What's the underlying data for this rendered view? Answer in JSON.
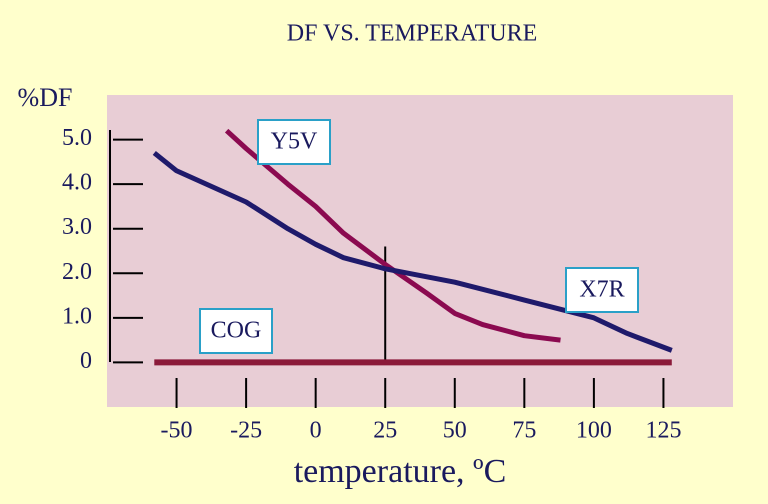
{
  "chart_data": {
    "type": "line",
    "title": "DF VS. TEMPERATURE",
    "y_label": "%DF",
    "x_label": "temperature, ºC",
    "xlim": [
      -75,
      150
    ],
    "xticks": [
      -50,
      -25,
      0,
      25,
      50,
      75,
      100,
      125
    ],
    "ylim": [
      -1,
      6
    ],
    "yticks": [
      0,
      {
        "value": 1,
        "label": "1.0"
      },
      {
        "value": 2,
        "label": "2.0"
      },
      {
        "value": 3,
        "label": "3.0"
      },
      {
        "value": 4,
        "label": "4.0"
      },
      {
        "value": 5,
        "label": "5.0"
      }
    ],
    "series": [
      {
        "name": "Y5V",
        "color": "#8b0a50",
        "x": [
          -32,
          -25,
          -10,
          0,
          10,
          25,
          40,
          50,
          60,
          75,
          88
        ],
        "values": [
          5.2,
          4.8,
          4.0,
          3.5,
          2.9,
          2.2,
          1.55,
          1.1,
          0.85,
          0.6,
          0.5
        ]
      },
      {
        "name": "X7R",
        "color": "#1f1a6b",
        "x": [
          -58,
          -50,
          -25,
          -10,
          0,
          10,
          25,
          50,
          75,
          100,
          112,
          128
        ],
        "values": [
          4.7,
          4.3,
          3.6,
          3.0,
          2.65,
          2.35,
          2.1,
          1.8,
          1.4,
          1.0,
          0.65,
          0.27
        ]
      },
      {
        "name": "COG",
        "color": "#8b1a3a",
        "x": [
          -58,
          128
        ],
        "values": [
          0,
          0
        ]
      }
    ],
    "reference_line": {
      "x": 25,
      "y": [
        0,
        2.6
      ]
    }
  }
}
